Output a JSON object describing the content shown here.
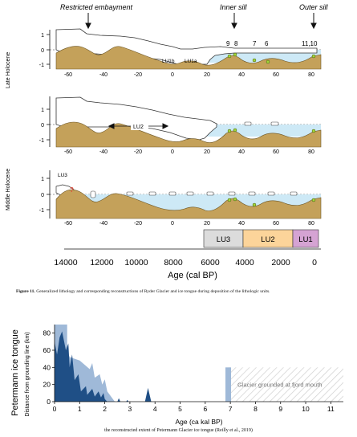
{
  "figure11": {
    "labels": {
      "restricted": "Restricted embayment",
      "inner": "Inner sill",
      "outer": "Outer sill",
      "late": "Late Holocene",
      "middle": "Middle Holocene",
      "lu1b": "LU1b",
      "lu1a": "LU1a",
      "lu2": "LU2",
      "lu3": "LU3",
      "q": "?"
    },
    "site_numbers": [
      "9",
      "8",
      "7",
      "6",
      "11,10"
    ],
    "x_ticks": [
      "-60",
      "-40",
      "-20",
      "0",
      "20",
      "40",
      "60",
      "80"
    ],
    "y_ticks": [
      "1",
      "0",
      "-1"
    ],
    "units": [
      {
        "label": "LU3",
        "color": "#dcdcdc"
      },
      {
        "label": "LU2",
        "color": "#fcd49a"
      },
      {
        "label": "LU1",
        "color": "#d5a3d3"
      }
    ],
    "age_ticks": [
      "14000",
      "12000",
      "10000",
      "8000",
      "6000",
      "4000",
      "2000",
      "0"
    ],
    "age_label": "Age (cal BP)",
    "caption_bold": "Figure 11.",
    "caption_text": " Generalized lithology and corresponding reconstructions of Ryder Glacier and ice tongue during deposition of the lithologic units."
  },
  "chart_data": {
    "type": "area",
    "title": "Petermann ice tongue",
    "ylabel": "Distance from grounding line (km)",
    "xlabel": "Age (ca kal BP)",
    "xlim": [
      0,
      11.5
    ],
    "ylim": [
      0,
      90
    ],
    "x_ticks": [
      "0",
      "1",
      "2",
      "3",
      "4",
      "5",
      "6",
      "7",
      "8",
      "9",
      "10",
      "11"
    ],
    "y_ticks": [
      "0",
      "20",
      "40",
      "60",
      "80"
    ],
    "series": [
      {
        "color": "#9fb9d8",
        "x": [
          0,
          0.5,
          0.5,
          0.6,
          1.0,
          1.4,
          1.5,
          1.6,
          1.8,
          1.9,
          2.0,
          2.1,
          2.4
        ],
        "y": [
          90,
          90,
          60,
          52,
          48,
          38,
          45,
          28,
          32,
          20,
          26,
          12,
          0
        ]
      },
      {
        "color": "#1f4f86",
        "x": [
          0,
          0.1,
          0.2,
          0.3,
          0.45,
          0.55,
          0.6,
          0.7,
          0.8,
          0.95,
          1.05,
          1.25,
          1.3,
          1.5,
          1.6,
          1.75,
          1.85,
          1.95,
          2.0,
          2.1
        ],
        "y": [
          70,
          55,
          75,
          82,
          60,
          68,
          40,
          55,
          25,
          32,
          12,
          18,
          8,
          15,
          6,
          12,
          5,
          10,
          3,
          0
        ]
      },
      {
        "color": "#1f4f86",
        "x": [
          3.6,
          3.72,
          3.85
        ],
        "y": [
          0,
          16,
          0
        ]
      },
      {
        "color": "#1f4f86",
        "x": [
          2.5,
          2.56,
          2.62
        ],
        "y": [
          0,
          4,
          0
        ]
      },
      {
        "color": "#1f4f86",
        "x": [
          2.85,
          2.9,
          2.95
        ],
        "y": [
          0,
          2,
          0
        ]
      }
    ],
    "grounded_label": "Glacier grounded at fjord mouth",
    "grounded_from": 6.9,
    "caption": "the reconstructed extent of Petermann Glacier ice tongue (Reilly et al., 2019)"
  }
}
